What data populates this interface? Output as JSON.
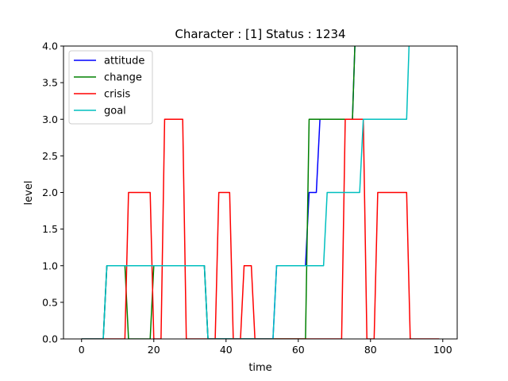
{
  "chart_data": {
    "type": "line",
    "title": "Character : [1] Status : 1234",
    "xlabel": "time",
    "ylabel": "level",
    "xlim": [
      -5,
      104
    ],
    "ylim": [
      0,
      4
    ],
    "xticks": [
      0,
      20,
      40,
      60,
      80,
      100
    ],
    "xtick_labels": [
      "0",
      "20",
      "40",
      "60",
      "80",
      "100"
    ],
    "yticks": [
      0.0,
      0.5,
      1.0,
      1.5,
      2.0,
      2.5,
      3.0,
      3.5,
      4.0
    ],
    "ytick_labels": [
      "0.0",
      "0.5",
      "1.0",
      "1.5",
      "2.0",
      "2.5",
      "3.0",
      "3.5",
      "4.0"
    ],
    "legend_position": "top-left",
    "grid": false,
    "series": [
      {
        "name": "attitude",
        "color": "#0000ff",
        "x": [
          0,
          6,
          7,
          34,
          35,
          53,
          54,
          62,
          63,
          65,
          66,
          75,
          76
        ],
        "y": [
          0,
          0,
          1,
          1,
          0,
          0,
          1,
          1,
          2,
          2,
          3,
          3,
          4.5
        ]
      },
      {
        "name": "change",
        "color": "#008000",
        "x": [
          0,
          6,
          7,
          12,
          13,
          19,
          20,
          34,
          35,
          62,
          63,
          75,
          76
        ],
        "y": [
          0,
          0,
          1,
          1,
          0,
          0,
          1,
          1,
          0,
          0,
          3,
          3,
          4.5
        ]
      },
      {
        "name": "crisis",
        "color": "#ff0000",
        "x": [
          0,
          12,
          13,
          19,
          20,
          22,
          23,
          28,
          29,
          37,
          38,
          41,
          42,
          44,
          45,
          47,
          48,
          72,
          73,
          78,
          79,
          81,
          82,
          90,
          91,
          99
        ],
        "y": [
          0,
          0,
          2,
          2,
          0,
          0,
          3,
          3,
          0,
          0,
          2,
          2,
          0,
          0,
          1,
          1,
          0,
          0,
          3,
          3,
          0,
          0,
          2,
          2,
          0,
          0
        ]
      },
      {
        "name": "goal",
        "color": "#00bfbf",
        "x": [
          0,
          6,
          7,
          34,
          35,
          53,
          54,
          67,
          68,
          77,
          78,
          89,
          90,
          91
        ],
        "y": [
          0,
          0,
          1,
          1,
          0,
          0,
          1,
          1,
          2,
          2,
          3,
          3,
          3,
          4.5
        ]
      }
    ]
  }
}
